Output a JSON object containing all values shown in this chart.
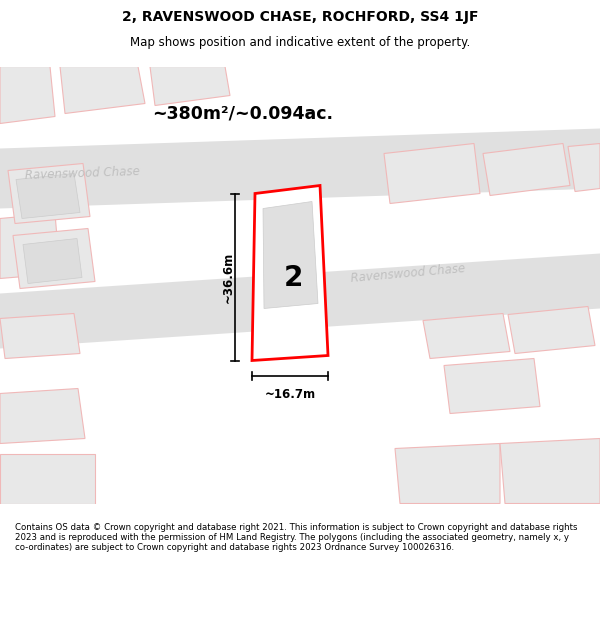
{
  "title": "2, RAVENSWOOD CHASE, ROCHFORD, SS4 1JF",
  "subtitle": "Map shows position and indicative extent of the property.",
  "area_label": "~380m²/~0.094ac.",
  "property_number": "2",
  "dim_width": "~16.7m",
  "dim_height": "~36.6m",
  "footer": "Contains OS data © Crown copyright and database right 2021. This information is subject to Crown copyright and database rights 2023 and is reproduced with the permission of HM Land Registry. The polygons (including the associated geometry, namely x, y co-ordinates) are subject to Crown copyright and database rights 2023 Ordnance Survey 100026316.",
  "bg_color": "#ffffff",
  "road_color": "#e0e0e0",
  "building_fill": "#e8e8e8",
  "building_edge": "#f0b8b8",
  "property_fill": "#ffffff",
  "property_edge": "#ff0000",
  "road_label_color": "#c0c0c0",
  "dim_color": "#000000",
  "title_fontsize": 10,
  "subtitle_fontsize": 8.5,
  "footer_fontsize": 6.2
}
